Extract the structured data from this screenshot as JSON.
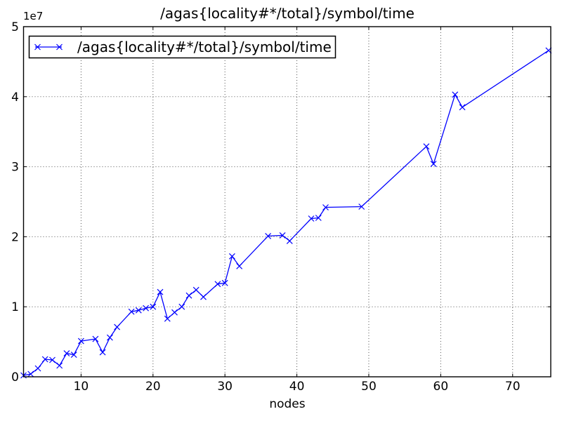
{
  "figure": {
    "title": "/agas{locality#*/total}/symbol/time",
    "xlabel": "nodes",
    "y_offset_label": "1e7",
    "legend_label": "/agas{locality#*/total}/symbol/time",
    "line_color": "#0000ff",
    "grid_color": "#555555",
    "background_color": "#ffffff"
  },
  "chart_data": {
    "type": "line",
    "title": "/agas{locality#*/total}/symbol/time",
    "xlabel": "nodes",
    "ylabel": "",
    "y_axis_multiplier": "1e7",
    "grid": true,
    "legend_position": "upper left",
    "xlim": [
      2,
      75.3
    ],
    "ylim": [
      0,
      50000000
    ],
    "xticks": [
      10,
      20,
      30,
      40,
      50,
      60,
      70
    ],
    "xtick_labels": [
      "10",
      "20",
      "30",
      "40",
      "50",
      "60",
      "70"
    ],
    "yticks": [
      0,
      10000000,
      20000000,
      30000000,
      40000000,
      50000000
    ],
    "ytick_labels": [
      "0",
      "1",
      "2",
      "3",
      "4",
      "5"
    ],
    "series": [
      {
        "name": "/agas{locality#*/total}/symbol/time",
        "color": "#0000ff",
        "marker": "x",
        "x": [
          2,
          3,
          4,
          5,
          6,
          7,
          8,
          9,
          10,
          12,
          13,
          14,
          15,
          17,
          18,
          19,
          20,
          21,
          22,
          23,
          24,
          25,
          26,
          27,
          29,
          30,
          31,
          32,
          36,
          38,
          39,
          42,
          43,
          44,
          49,
          58,
          59,
          62,
          63,
          75
        ],
        "y": [
          200000,
          400000,
          1200000,
          2500000,
          2400000,
          1600000,
          3350000,
          3150000,
          5100000,
          5400000,
          3500000,
          5600000,
          7100000,
          9300000,
          9500000,
          9800000,
          10000000,
          12100000,
          8300000,
          9200000,
          10000000,
          11600000,
          12400000,
          11400000,
          13250000,
          13400000,
          17200000,
          15800000,
          20100000,
          20200000,
          19400000,
          22600000,
          22700000,
          24200000,
          24300000,
          32900000,
          30400000,
          40300000,
          38500000,
          46600000
        ]
      }
    ]
  }
}
